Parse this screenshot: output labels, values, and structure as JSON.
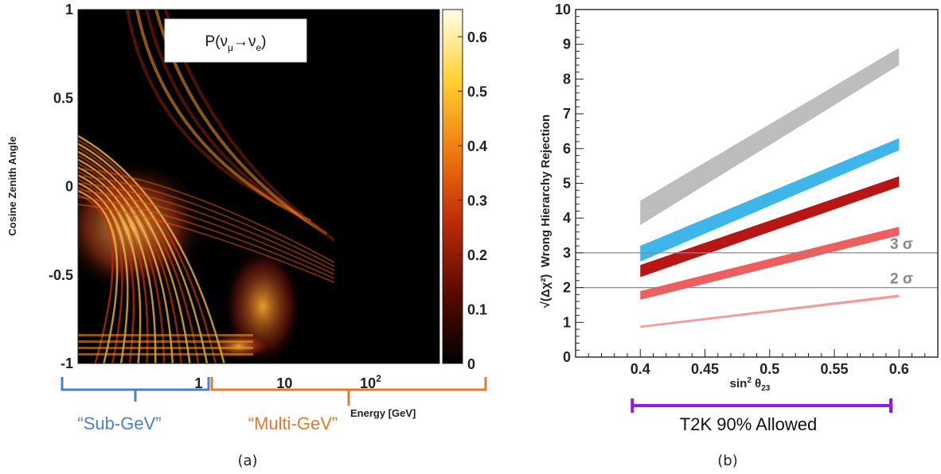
{
  "chart_data": [
    {
      "panel_label": "(a)",
      "type": "heatmap",
      "title": "P(ν_μ→ν_e)",
      "title_parts": {
        "base": "P(ν",
        "sub1": "μ",
        "arrow": "→ν",
        "sub2": "e",
        "close": ")"
      },
      "xlabel": "Energy [GeV]",
      "ylabel": "Cosine Zenith Angle",
      "x_scale": "log",
      "x_tick_labels": [
        {
          "value": 1,
          "label": "1"
        },
        {
          "value": 10,
          "label": "10"
        },
        {
          "value": 100,
          "label": "10",
          "sup": "2"
        }
      ],
      "ylim": [
        -1,
        1
      ],
      "y_tick_labels": [
        "1",
        "0.5",
        "0",
        "-0.5",
        "-1"
      ],
      "colorbar": {
        "range": [
          0,
          0.65
        ],
        "ticks": [
          "0.6",
          "0.5",
          "0.4",
          "0.3",
          "0.2",
          "0.1",
          "0"
        ]
      },
      "colors": {
        "bracket_sub": "#4f7ec8",
        "bracket_multi": "#e07a2e"
      },
      "annotations": [
        {
          "name": "sub-gev",
          "text": "“Sub-GeV”"
        },
        {
          "name": "multi-gev",
          "text": "“Multi-GeV”"
        }
      ]
    },
    {
      "panel_label": "(b)",
      "type": "line",
      "xlabel": "sin² θ₂₃",
      "xlabel_parts": {
        "base": "sin",
        "sup": "2",
        "theta": " θ",
        "sub": "23"
      },
      "ylabel": "Wrong Hierarchy Rejection",
      "ylabel_prefix": "√(Δχ²)",
      "xlim": [
        0.35,
        0.63
      ],
      "ylim": [
        0,
        10
      ],
      "x_tick_labels": [
        "0.4",
        "0.45",
        "0.5",
        "0.55",
        "0.6"
      ],
      "y_tick_labels": [
        "0",
        "1",
        "2",
        "3",
        "4",
        "5",
        "6",
        "7",
        "8",
        "9",
        "10"
      ],
      "reference_lines": [
        {
          "y": 3,
          "label": "3 σ"
        },
        {
          "y": 2,
          "label": "2 σ"
        }
      ],
      "series": [
        {
          "x": [
            0.4,
            0.6
          ],
          "lower": [
            3.8,
            8.4
          ],
          "upper": [
            4.5,
            8.9
          ],
          "color": "#bdbdbd"
        },
        {
          "x": [
            0.4,
            0.6
          ],
          "lower": [
            2.75,
            5.95
          ],
          "upper": [
            3.2,
            6.3
          ],
          "color": "#3fb6ea"
        },
        {
          "x": [
            0.4,
            0.6
          ],
          "lower": [
            2.3,
            4.9
          ],
          "upper": [
            2.65,
            5.2
          ],
          "color": "#b81515"
        },
        {
          "x": [
            0.4,
            0.6
          ],
          "lower": [
            1.65,
            3.5
          ],
          "upper": [
            1.9,
            3.75
          ],
          "color": "#ee5e5e"
        },
        {
          "x": [
            0.4,
            0.6
          ],
          "lower": [
            0.84,
            1.72
          ],
          "upper": [
            0.9,
            1.8
          ],
          "color": "#f19b9b"
        }
      ],
      "allowed_range": {
        "label": "T2K 90% Allowed",
        "x": [
          0.4,
          0.59
        ],
        "color": "#8a1ee6"
      }
    }
  ]
}
